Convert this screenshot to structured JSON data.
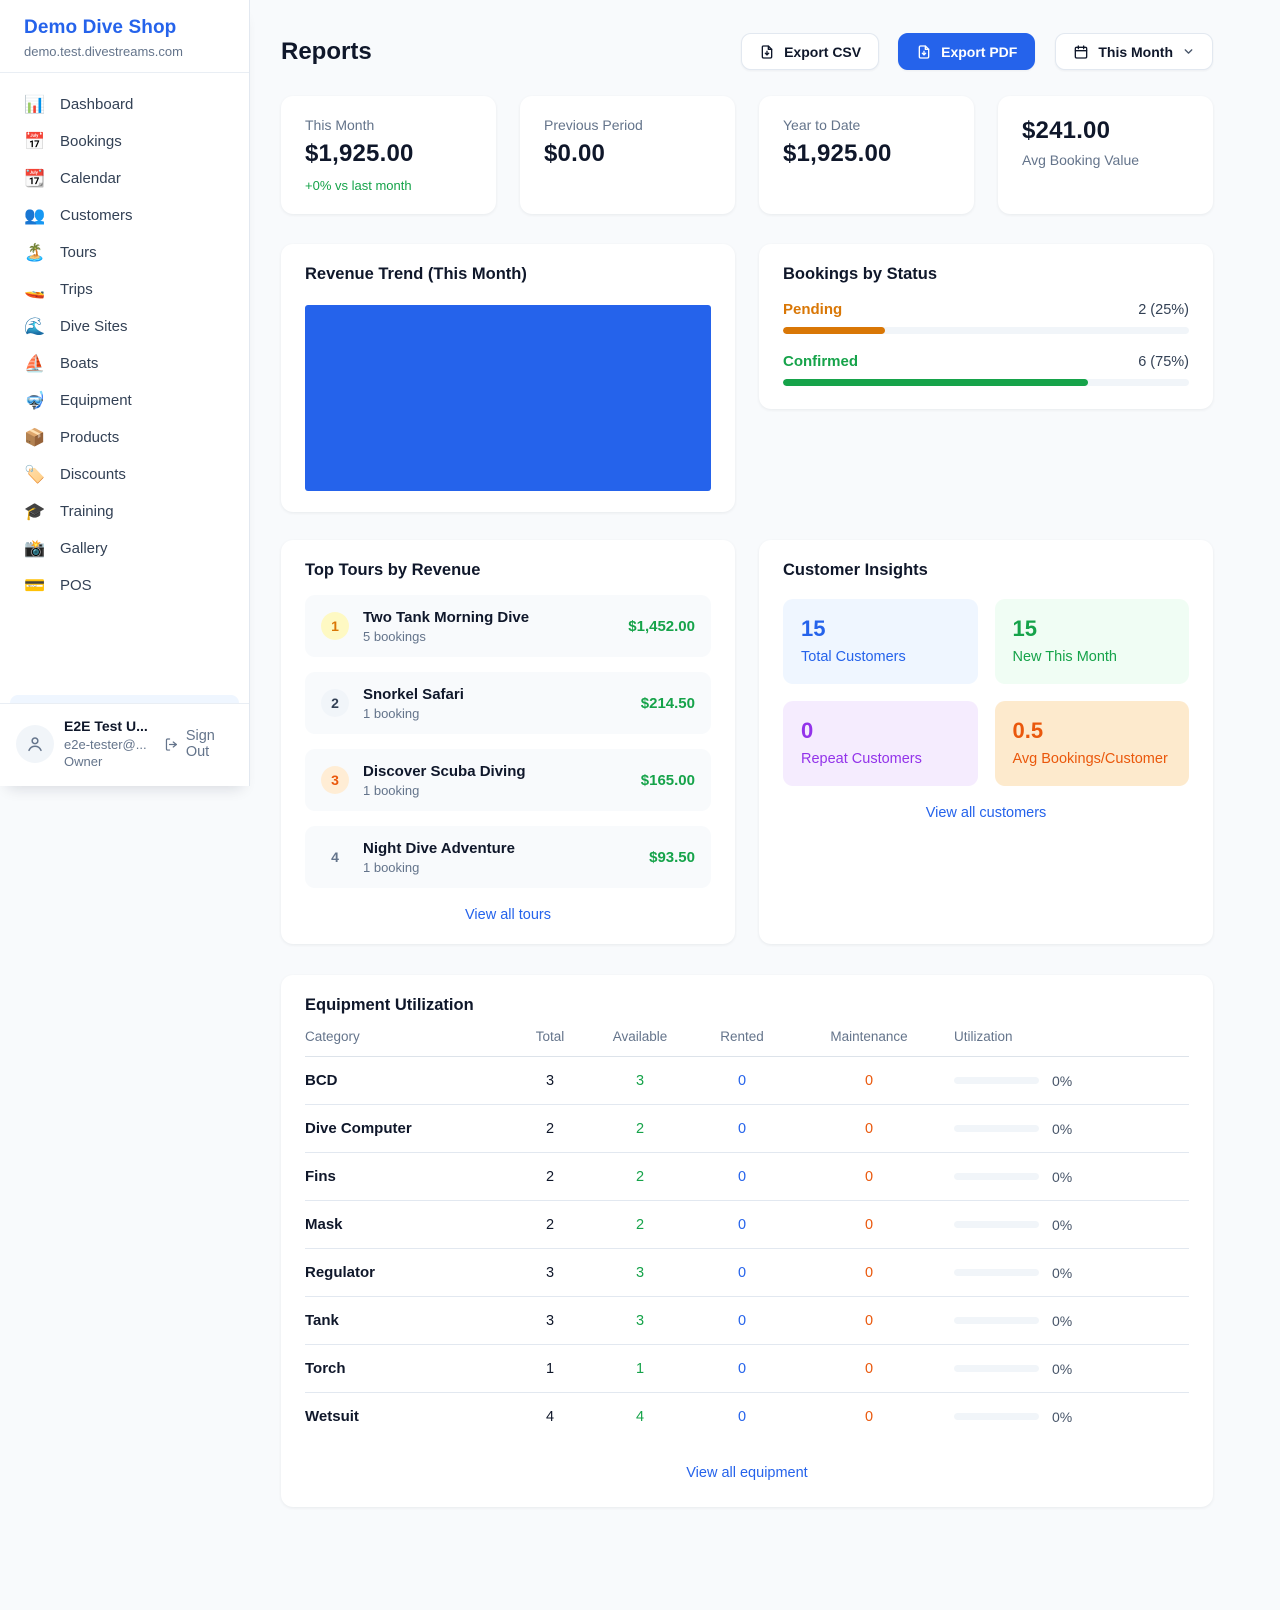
{
  "app": {
    "name": "Demo Dive Shop",
    "domain": "demo.test.divestreams.com"
  },
  "sidebar": {
    "items": [
      {
        "icon": "bar-chart-icon",
        "glyph": "📊",
        "label": "Dashboard"
      },
      {
        "icon": "calendar-date-icon",
        "glyph": "📅",
        "label": "Bookings"
      },
      {
        "icon": "tear-off-calendar-icon",
        "glyph": "📆",
        "label": "Calendar"
      },
      {
        "icon": "people-icon",
        "glyph": "👥",
        "label": "Customers"
      },
      {
        "icon": "island-icon",
        "glyph": "🏝️",
        "label": "Tours"
      },
      {
        "icon": "speedboat-icon",
        "glyph": "🚤",
        "label": "Trips"
      },
      {
        "icon": "wave-icon",
        "glyph": "🌊",
        "label": "Dive Sites"
      },
      {
        "icon": "sailboat-icon",
        "glyph": "⛵",
        "label": "Boats"
      },
      {
        "icon": "diving-mask-icon",
        "glyph": "🤿",
        "label": "Equipment"
      },
      {
        "icon": "package-icon",
        "glyph": "📦",
        "label": "Products"
      },
      {
        "icon": "tag-icon",
        "glyph": "🏷️",
        "label": "Discounts"
      },
      {
        "icon": "graduation-cap-icon",
        "glyph": "🎓",
        "label": "Training"
      },
      {
        "icon": "camera-icon",
        "glyph": "📸",
        "label": "Gallery"
      },
      {
        "icon": "credit-card-icon",
        "glyph": "💳",
        "label": "POS"
      }
    ],
    "user": {
      "name": "E2E Test U...",
      "email": "e2e-tester@...",
      "role": "Owner",
      "signout_label": "Sign Out"
    }
  },
  "header": {
    "title": "Reports",
    "export_csv_label": "Export CSV",
    "export_pdf_label": "Export PDF",
    "period_label": "This Month"
  },
  "stats": [
    {
      "label": "This Month",
      "value": "$1,925.00",
      "delta": "+0% vs last month"
    },
    {
      "label": "Previous Period",
      "value": "$0.00"
    },
    {
      "label": "Year to Date",
      "value": "$1,925.00"
    },
    {
      "value": "$241.00",
      "label": "Avg Booking Value"
    }
  ],
  "revenue": {
    "title": "Revenue Trend (This Month)",
    "bar_color": "#2563eb"
  },
  "status": {
    "title": "Bookings by Status",
    "rows": [
      {
        "label": "Pending",
        "count": "2 (25%)",
        "pct": 25,
        "color": "#d97706"
      },
      {
        "label": "Confirmed",
        "count": "6 (75%)",
        "pct": 75,
        "color": "#16a34a"
      }
    ]
  },
  "top_tours": {
    "title": "Top Tours by Revenue",
    "link": "View all tours",
    "rows": [
      {
        "rank": "1",
        "name": "Two Tank Morning Dive",
        "bookings": "5 bookings",
        "amount": "$1,452.00",
        "badge_bg": "#fef9c3",
        "badge_color": "#d97706"
      },
      {
        "rank": "2",
        "name": "Snorkel Safari",
        "bookings": "1 booking",
        "amount": "$214.50",
        "badge_bg": "#f1f5f9",
        "badge_color": "#334155"
      },
      {
        "rank": "3",
        "name": "Discover Scuba Diving",
        "bookings": "1 booking",
        "amount": "$165.00",
        "badge_bg": "#ffedd5",
        "badge_color": "#ea580c"
      },
      {
        "rank": "4",
        "name": "Night Dive Adventure",
        "bookings": "1 booking",
        "amount": "$93.50",
        "badge_bg": "transparent",
        "badge_color": "#64748b"
      }
    ]
  },
  "insights": {
    "title": "Customer Insights",
    "link": "View all customers",
    "tiles": [
      {
        "value": "15",
        "label": "Total Customers",
        "bg": "#eff6ff",
        "color": "#2563eb"
      },
      {
        "value": "15",
        "label": "New This Month",
        "bg": "#f0fdf4",
        "color": "#16a34a"
      },
      {
        "value": "0",
        "label": "Repeat Customers",
        "bg": "#f5ecfe",
        "color": "#9333ea"
      },
      {
        "value": "0.5",
        "label": "Avg Bookings/Customer",
        "bg": "#fdeacd",
        "color": "#ea580c"
      }
    ]
  },
  "equipment": {
    "title": "Equipment Utilization",
    "link": "View all equipment",
    "columns": [
      "Category",
      "Total",
      "Available",
      "Rented",
      "Maintenance",
      "Utilization"
    ],
    "rows": [
      {
        "category": "BCD",
        "total": "3",
        "available": "3",
        "rented": "0",
        "maintenance": "0",
        "utilization": "0%",
        "pct": 0
      },
      {
        "category": "Dive Computer",
        "total": "2",
        "available": "2",
        "rented": "0",
        "maintenance": "0",
        "utilization": "0%",
        "pct": 0
      },
      {
        "category": "Fins",
        "total": "2",
        "available": "2",
        "rented": "0",
        "maintenance": "0",
        "utilization": "0%",
        "pct": 0
      },
      {
        "category": "Mask",
        "total": "2",
        "available": "2",
        "rented": "0",
        "maintenance": "0",
        "utilization": "0%",
        "pct": 0
      },
      {
        "category": "Regulator",
        "total": "3",
        "available": "3",
        "rented": "0",
        "maintenance": "0",
        "utilization": "0%",
        "pct": 0
      },
      {
        "category": "Tank",
        "total": "3",
        "available": "3",
        "rented": "0",
        "maintenance": "0",
        "utilization": "0%",
        "pct": 0
      },
      {
        "category": "Torch",
        "total": "1",
        "available": "1",
        "rented": "0",
        "maintenance": "0",
        "utilization": "0%",
        "pct": 0
      },
      {
        "category": "Wetsuit",
        "total": "4",
        "available": "4",
        "rented": "0",
        "maintenance": "0",
        "utilization": "0%",
        "pct": 0
      }
    ]
  },
  "colors": {
    "accent": "#2563eb",
    "green": "#16a34a",
    "orange": "#d97706",
    "deep_orange": "#ea580c",
    "purple": "#9333ea"
  }
}
